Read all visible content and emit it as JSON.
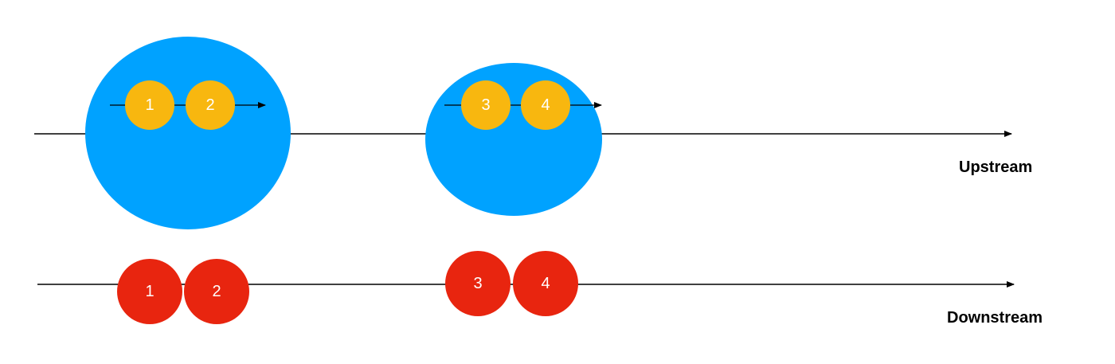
{
  "colors": {
    "window": "#00a2ff",
    "upstream_item": "#f8b70f",
    "downstream_item": "#e8250f",
    "line": "#000000",
    "item_text": "#ffffff"
  },
  "upstream": {
    "label": "Upstream",
    "windows": [
      {
        "items": [
          {
            "label": "1"
          },
          {
            "label": "2"
          }
        ]
      },
      {
        "items": [
          {
            "label": "3"
          },
          {
            "label": "4"
          }
        ]
      }
    ]
  },
  "downstream": {
    "label": "Downstream",
    "items": [
      {
        "label": "1"
      },
      {
        "label": "2"
      },
      {
        "label": "3"
      },
      {
        "label": "4"
      }
    ]
  }
}
